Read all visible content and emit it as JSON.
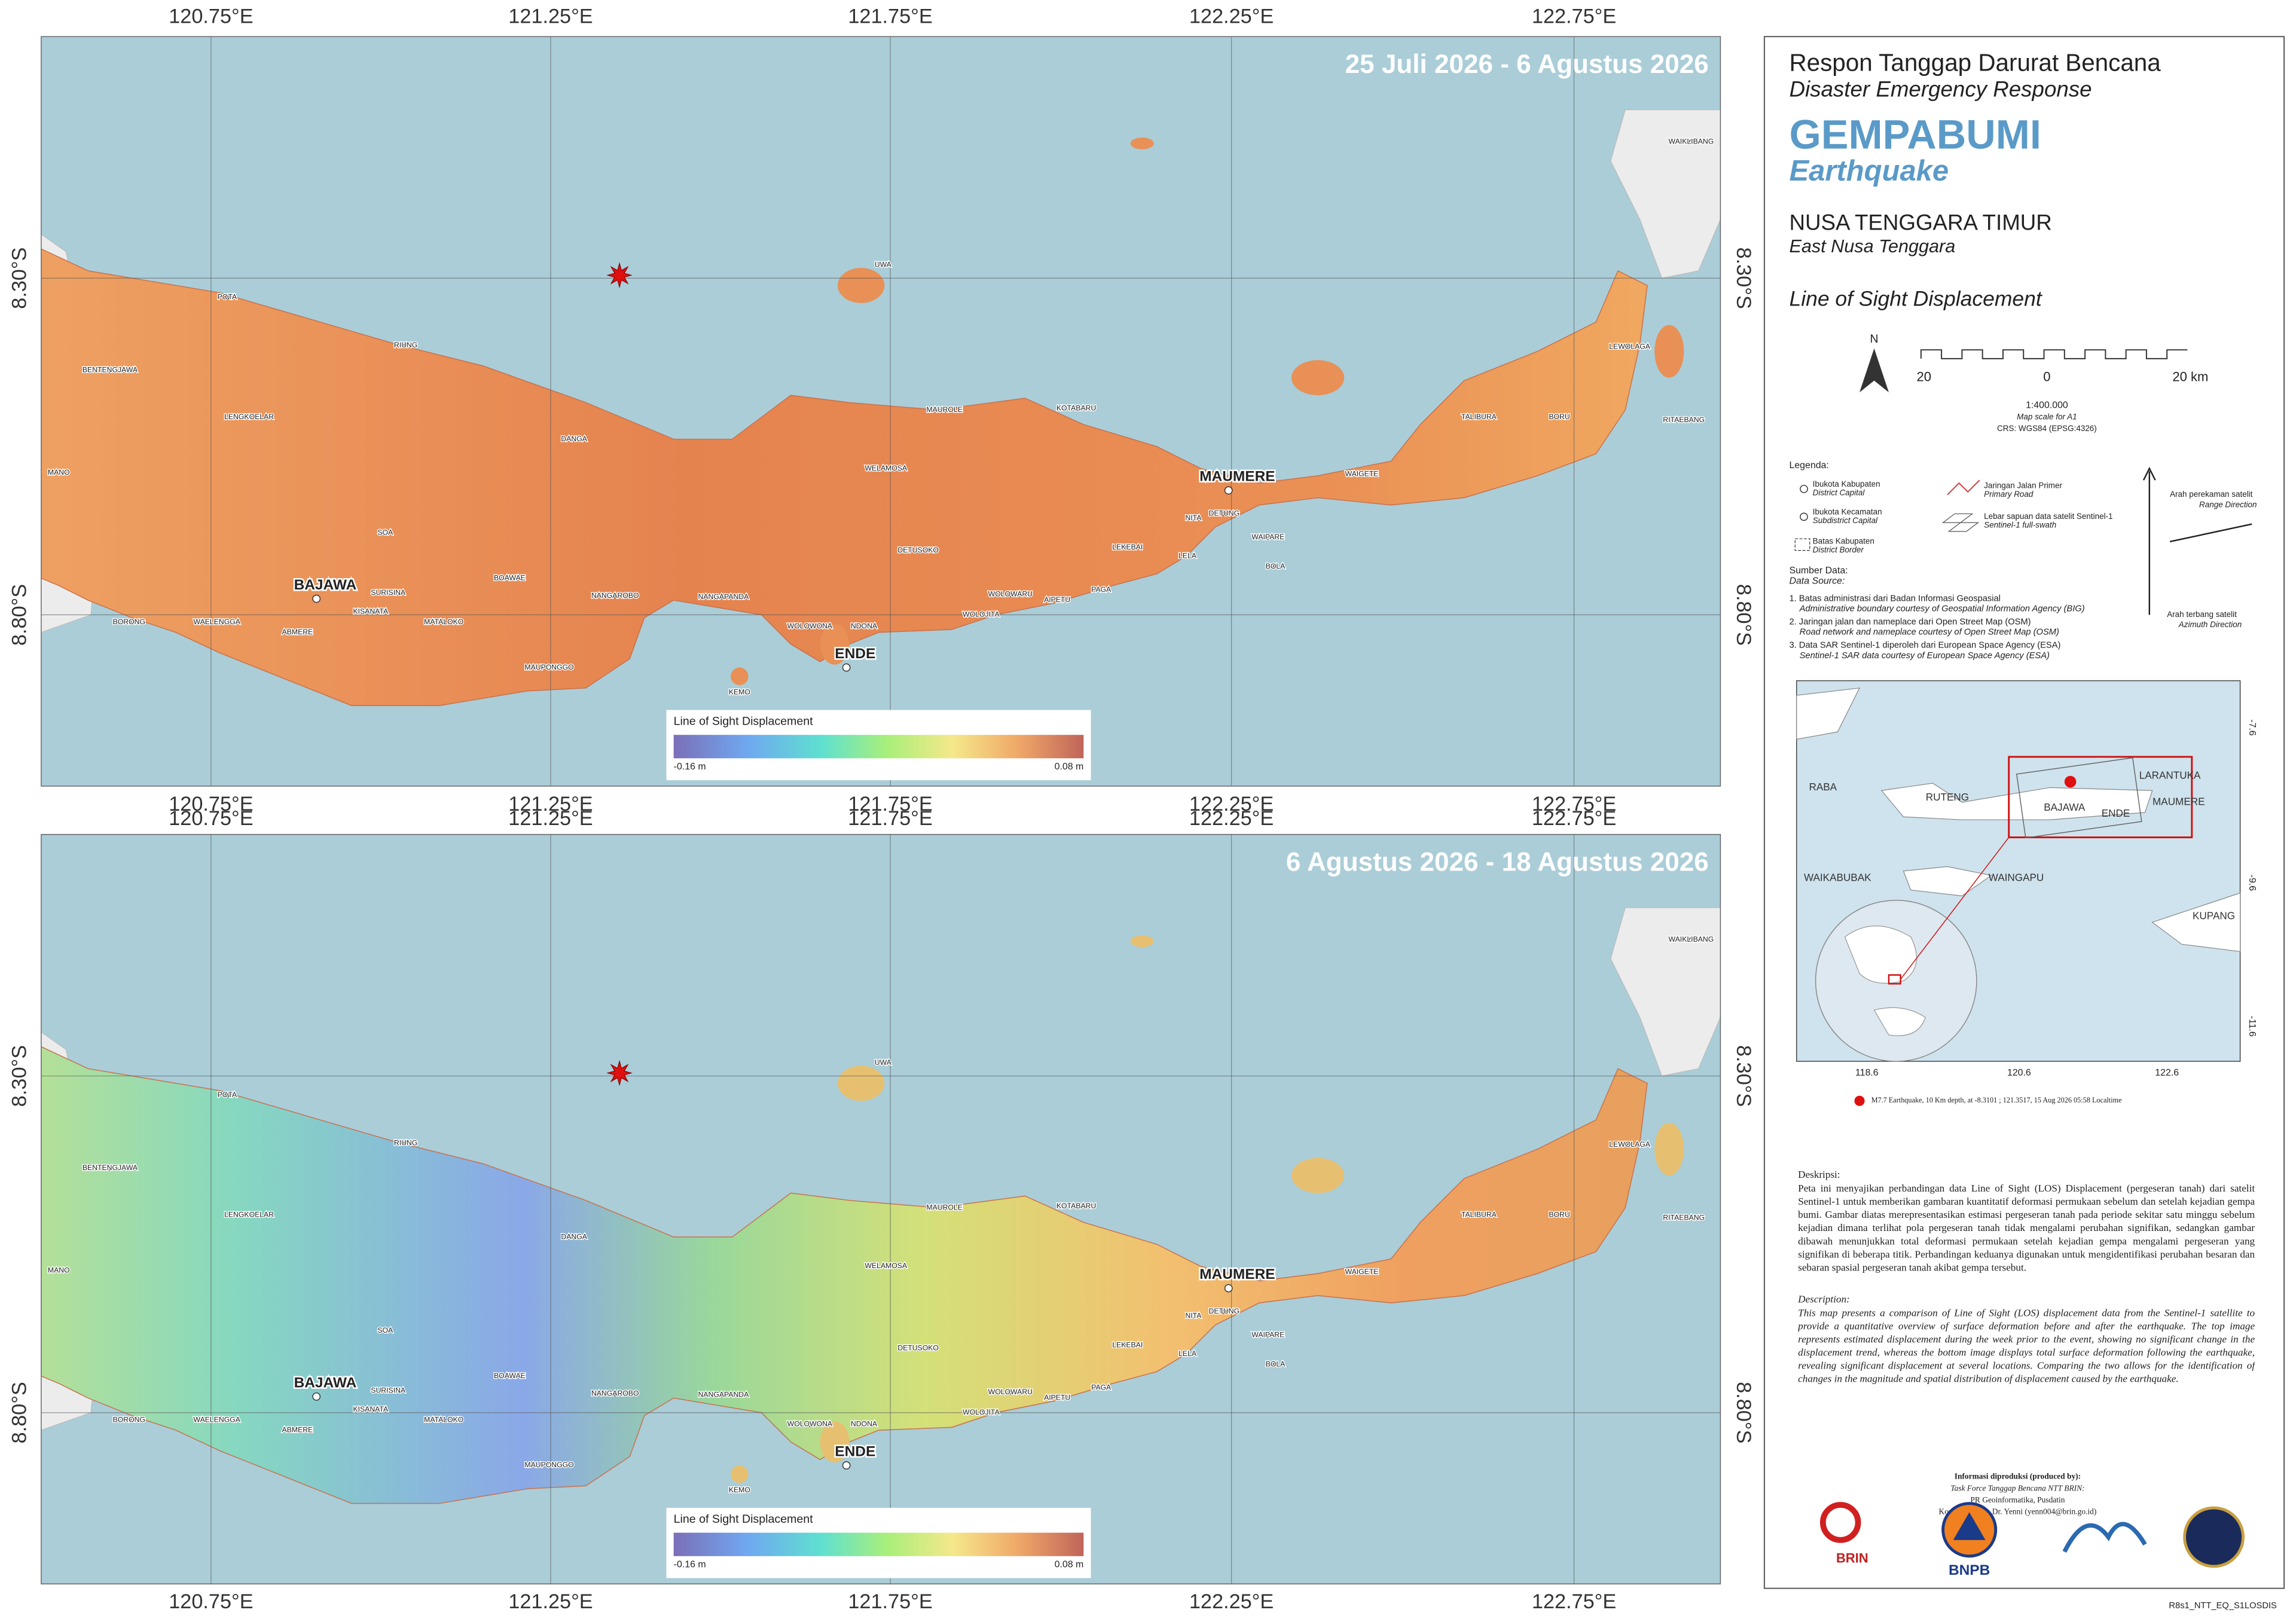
{
  "maps": [
    {
      "period": "25 Juli 2026 - 6 Agustus 2026",
      "legend_title": "Line of Sight Displacement",
      "legend_min": "-0.16 m",
      "legend_max": "0.08 m"
    },
    {
      "period": "6 Agustus 2026 - 18 Agustus 2026",
      "legend_title": "Line of Sight Displacement",
      "legend_min": "-0.16 m",
      "legend_max": "0.08 m"
    }
  ],
  "axes": {
    "longitudes": [
      "120.75°E",
      "121.25°E",
      "121.75°E",
      "122.25°E",
      "122.75°E"
    ],
    "latitudes": [
      "8.30°S",
      "8.80°S"
    ]
  },
  "places": [
    "POTA",
    "BENTENGJAWA",
    "LENGKOELAR",
    "RIUNG",
    "MANO",
    "DANGA",
    "MAUROLE",
    "KOTABARU",
    "WELAMOSA",
    "MAUMERE",
    "SOA",
    "BAJAWA",
    "SURISINA",
    "KISANATA",
    "BOAWAE",
    "MATALOKO",
    "WAELENGGA",
    "ABMERE",
    "BORONG",
    "MAUPONGGO",
    "NANGAROBO",
    "NANGAPANDA",
    "WOLOWONA",
    "NDONA",
    "ENDE",
    "KEMO",
    "DETUSOKO",
    "WOLOWARU",
    "WOLOJITA",
    "AIPETU",
    "PAGA",
    "LEKEBAI",
    "NITA",
    "DETUNG",
    "WAIPARE",
    "LELA",
    "BOLA",
    "WAIGETE",
    "TALIBURA",
    "BORU",
    "LEWOLAGA",
    "RITAEBANG",
    "WAIKLIBANG",
    "UWA"
  ],
  "panel": {
    "title_id": "Respon Tanggap Darurat Bencana",
    "title_en": "Disaster Emergency Response",
    "hazard_id": "GEMPABUMI",
    "hazard_en": "Earthquake",
    "region_id": "NUSA TENGGARA TIMUR",
    "region_en": "East Nusa Tenggara",
    "subject": "Line of Sight Displacement",
    "north": "N",
    "scale_labels": [
      "20",
      "0",
      "20 km"
    ],
    "scale_ratio": "1:400.000",
    "scale_note": "Map scale for A1",
    "crs": "CRS: WGS84 (EPSG:4326)",
    "legend_title": "Legenda:",
    "legend_items": [
      {
        "id": "Ibukota Kabupaten",
        "en": "District Capital"
      },
      {
        "id": "Ibukota Kecamatan",
        "en": "Subdistrict Capital"
      },
      {
        "id": "Batas Kabupaten",
        "en": "District Border"
      },
      {
        "id": "Jaringan Jalan Primer",
        "en": "Primary Road"
      },
      {
        "id": "Lebar sapuan data satelit Sentinel-1",
        "en": "Sentinel-1 full-swath"
      }
    ],
    "range_dir": {
      "id": "Arah perekaman satelit",
      "en": "Range Direction"
    },
    "azimuth_dir": {
      "id": "Arah terbang satelit",
      "en": "Azimuth Direction"
    },
    "source_title": "Sumber Data:",
    "source_title_en": "Data Source:",
    "sources": [
      {
        "id": "1. Batas administrasi dari Badan Informasi Geospasial",
        "en": "Administrative boundary courtesy of Geospatial Information Agency (BIG)"
      },
      {
        "id": "2. Jaringan jalan dan nameplace dari Open Street Map (OSM)",
        "en": "Road network and nameplace courtesy of Open Street Map (OSM)"
      },
      {
        "id": "3. Data SAR Sentinel-1 diperoleh dari European Space Agency (ESA)",
        "en": "Sentinel-1 SAR data courtesy of European Space Agency (ESA)"
      }
    ],
    "inset_places": [
      "RABA",
      "RUTENG",
      "BAJAWA",
      "ENDE",
      "LARANTUKA",
      "MAUMERE",
      "WAIKABUBAK",
      "WAINGAPU",
      "KUPANG"
    ],
    "inset_lon": [
      "118.6",
      "120.6",
      "122.6"
    ],
    "inset_lat": [
      "-7.6",
      "-9.6",
      "-11.6"
    ],
    "epicenter_note": "M7.7 Earthquake, 10 Km depth, at -8.3101 ; 121.3517, 15 Aug 2026 05:58 Localtime",
    "desc_title_id": "Deskripsi:",
    "desc_id": "Peta ini menyajikan perbandingan data Line of Sight (LOS) Displacement (pergeseran tanah) dari satelit Sentinel-1 untuk memberikan gambaran kuantitatif deformasi permukaan sebelum dan setelah kejadian gempa bumi. Gambar diatas merepresentasikan estimasi pergeseran tanah pada periode sekitar satu minggu sebelum kejadian dimana terlihat pola pergeseran tanah tidak mengalami perubahan signifikan, sedangkan gambar dibawah menunjukkan total deformasi permukaan setelah kejadian gempa mengalami pergeseran yang signifikan di beberapa titik. Perbandingan keduanya digunakan untuk mengidentifikasi perubahan besaran dan sebaran spasial pergeseran tanah akibat gempa tersebut.",
    "desc_title_en": "Description:",
    "desc_en": "This map presents a comparison of Line of Sight (LOS) displacement data from the Sentinel-1 satellite to provide a quantitative overview of surface deformation before and after the earthquake. The top image represents estimated displacement during the week prior to the event, showing no significant change in the displacement trend, whereas the bottom image displays total surface deformation following the earthquake, revealing significant displacement at several locations. Comparing the two allows for the identification of changes in the magnitude and spatial distribution of displacement caused by the earthquake.",
    "producer": [
      "Informasi diproduksi (produced by):",
      "Task Force Tanggap Bencana NTT BRIN:",
      "PR Geoinformatika, Pusdatin",
      "Kontak/contact: Dr. Yenni (yenn004@brin.go.id)"
    ],
    "logos": [
      "BRIN",
      "BNPB"
    ],
    "code": "R8s1_NTT_EQ_S1LOSDIS"
  }
}
